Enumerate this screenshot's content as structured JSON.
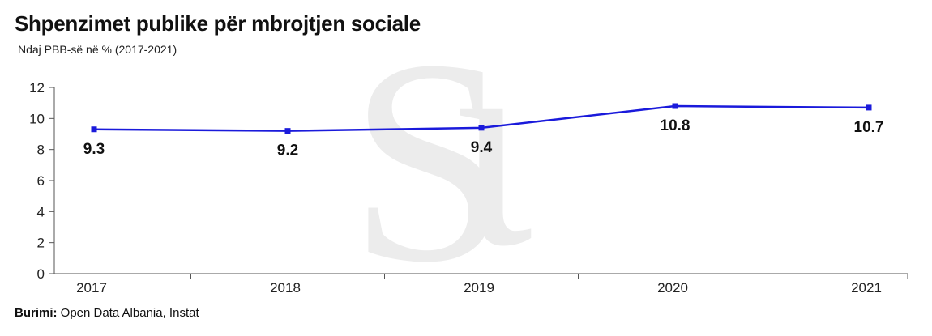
{
  "header": {
    "title": "Shpenzimet publike për mbrojtjen sociale",
    "subtitle": "Ndaj PBB-së në % (2017-2021)"
  },
  "footer": {
    "source_label": "Burimi:",
    "source_text": " Open Data Albania, Instat"
  },
  "colors": {
    "line": "#1a1adb",
    "watermark": "#ececec"
  },
  "chart_data": {
    "type": "line",
    "title": "Shpenzimet publike për mbrojtjen sociale",
    "subtitle": "Ndaj PBB-së në % (2017-2021)",
    "x": [
      "2017",
      "2018",
      "2019",
      "2020",
      "2021"
    ],
    "series": [
      {
        "values": [
          9.3,
          9.2,
          9.4,
          10.8,
          10.7
        ]
      }
    ],
    "data_labels": [
      "9.3",
      "9.2",
      "9.4",
      "10.8",
      "10.7"
    ],
    "ylim": [
      0,
      12
    ],
    "yticks": [
      0,
      2,
      4,
      6,
      8,
      10,
      12
    ],
    "grid": false,
    "legend": "none",
    "xlabel": "",
    "ylabel": ""
  }
}
